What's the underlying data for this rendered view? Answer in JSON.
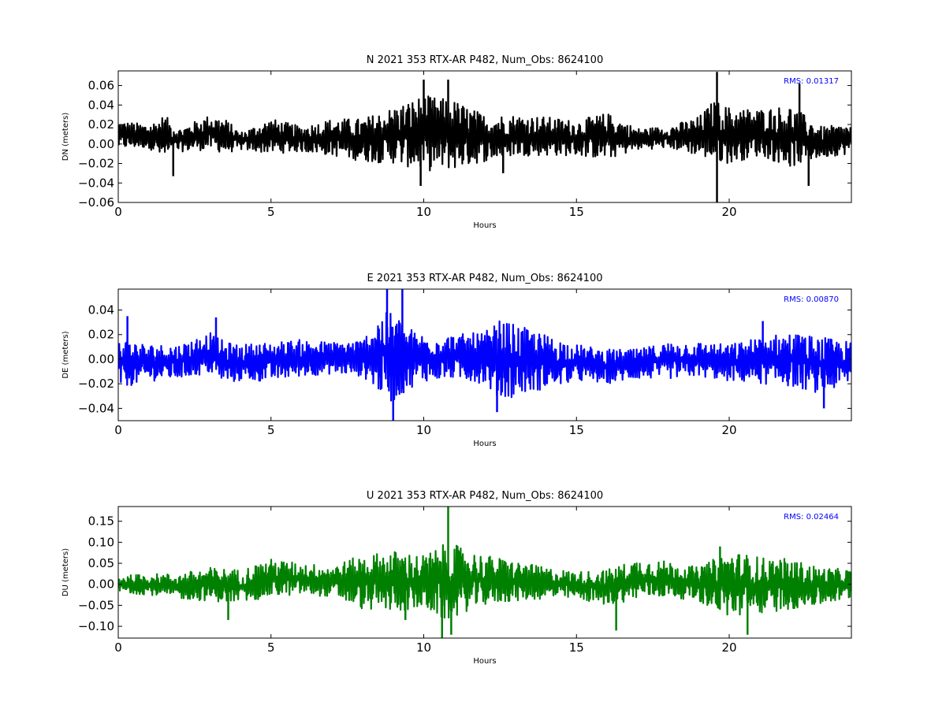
{
  "chart_data": [
    {
      "type": "line",
      "title": "N 2021 353 RTX-AR  P482, Num_Obs: 8624100",
      "xlabel": "Hours",
      "ylabel": "DN (meters)",
      "xlim": [
        0,
        24
      ],
      "ylim": [
        -0.06,
        0.075
      ],
      "xticks": [
        0,
        5,
        10,
        15,
        20
      ],
      "xtick_labels": [
        "0",
        "5",
        "10",
        "15",
        "20"
      ],
      "yticks": [
        -0.06,
        -0.04,
        -0.02,
        0.0,
        0.02,
        0.04,
        0.06
      ],
      "ytick_labels": [
        "−0.06",
        "−0.04",
        "−0.02",
        "0.00",
        "0.02",
        "0.04",
        "0.06"
      ],
      "color": "#000000",
      "annotation": "RMS:  0.01317",
      "annotation_color": "#0000ff",
      "series": [
        {
          "x": [
            0,
            1,
            1.5,
            2,
            3,
            3.5,
            4,
            5,
            6,
            7,
            8,
            9,
            10,
            11,
            12,
            13,
            14,
            15,
            16,
            17,
            18,
            19,
            19.5,
            20,
            21,
            22,
            23,
            24
          ],
          "upper": [
            0.024,
            0.02,
            0.03,
            0.016,
            0.03,
            0.026,
            0.012,
            0.026,
            0.018,
            0.026,
            0.026,
            0.038,
            0.05,
            0.045,
            0.03,
            0.03,
            0.028,
            0.024,
            0.032,
            0.016,
            0.018,
            0.028,
            0.045,
            0.038,
            0.036,
            0.04,
            0.018,
            0.02
          ],
          "lower": [
            -0.005,
            -0.004,
            -0.018,
            -0.008,
            -0.006,
            -0.01,
            -0.006,
            -0.01,
            -0.008,
            -0.012,
            -0.018,
            -0.02,
            -0.028,
            -0.026,
            -0.018,
            -0.012,
            -0.012,
            -0.012,
            -0.016,
            -0.006,
            -0.004,
            -0.012,
            -0.018,
            -0.02,
            -0.012,
            -0.024,
            -0.014,
            -0.01
          ],
          "peaks": [
            [
              10,
              0.066
            ],
            [
              10.8,
              0.066
            ],
            [
              19.6,
              0.074
            ],
            [
              19.6,
              -0.06
            ],
            [
              22.3,
              0.062
            ],
            [
              9.9,
              -0.043
            ],
            [
              22.6,
              -0.043
            ],
            [
              1.8,
              -0.033
            ],
            [
              12.6,
              -0.03
            ]
          ]
        }
      ]
    },
    {
      "type": "line",
      "title": "E 2021 353 RTX-AR  P482, Num_Obs: 8624100",
      "xlabel": "Hours",
      "ylabel": "DE (meters)",
      "xlim": [
        0,
        24
      ],
      "ylim": [
        -0.05,
        0.057
      ],
      "xticks": [
        0,
        5,
        10,
        15,
        20
      ],
      "xtick_labels": [
        "0",
        "5",
        "10",
        "15",
        "20"
      ],
      "yticks": [
        -0.04,
        -0.02,
        0.0,
        0.02,
        0.04
      ],
      "ytick_labels": [
        "−0.04",
        "−0.02",
        "0.00",
        "0.02",
        "0.04"
      ],
      "color": "#0000ff",
      "annotation": "RMS:  0.00870",
      "annotation_color": "#0000ff",
      "series": [
        {
          "x": [
            0,
            1,
            2,
            3,
            3.5,
            4,
            5,
            6,
            7,
            8,
            8.5,
            9,
            9.5,
            10,
            11,
            12,
            12.5,
            13,
            14,
            15,
            16,
            17,
            18,
            19,
            20,
            21,
            22,
            23,
            24
          ],
          "upper": [
            0.018,
            0.012,
            0.012,
            0.022,
            0.014,
            0.012,
            0.014,
            0.016,
            0.014,
            0.016,
            0.035,
            0.04,
            0.026,
            0.02,
            0.02,
            0.022,
            0.032,
            0.028,
            0.02,
            0.012,
            0.008,
            0.008,
            0.014,
            0.014,
            0.012,
            0.018,
            0.022,
            0.018,
            0.014
          ],
          "lower": [
            -0.024,
            -0.018,
            -0.016,
            -0.012,
            -0.02,
            -0.018,
            -0.018,
            -0.014,
            -0.012,
            -0.014,
            -0.026,
            -0.036,
            -0.024,
            -0.018,
            -0.016,
            -0.02,
            -0.034,
            -0.03,
            -0.024,
            -0.018,
            -0.02,
            -0.016,
            -0.016,
            -0.014,
            -0.018,
            -0.02,
            -0.022,
            -0.028,
            -0.02
          ],
          "peaks": [
            [
              8.8,
              0.057
            ],
            [
              9.3,
              0.057
            ],
            [
              9.0,
              -0.05
            ],
            [
              12.4,
              -0.043
            ],
            [
              23.1,
              -0.04
            ],
            [
              0.3,
              0.035
            ],
            [
              3.2,
              0.034
            ],
            [
              21.1,
              0.031
            ]
          ]
        }
      ]
    },
    {
      "type": "line",
      "title": "U 2021 353 RTX-AR  P482, Num_Obs: 8624100",
      "xlabel": "Hours",
      "ylabel": "DU (meters)",
      "xlim": [
        0,
        24
      ],
      "ylim": [
        -0.128,
        0.185
      ],
      "xticks": [
        0,
        5,
        10,
        15,
        20
      ],
      "xtick_labels": [
        "0",
        "5",
        "10",
        "15",
        "20"
      ],
      "yticks": [
        -0.1,
        -0.05,
        0.0,
        0.05,
        0.1,
        0.15
      ],
      "ytick_labels": [
        "−0.10",
        "−0.05",
        "0.00",
        "0.05",
        "0.10",
        "0.15"
      ],
      "color": "#008000",
      "annotation": "RMS:  0.02464",
      "annotation_color": "#0000ff",
      "series": [
        {
          "x": [
            0,
            1,
            2,
            3,
            4,
            5,
            6,
            7,
            8,
            9,
            10,
            10.8,
            11.5,
            12,
            13,
            14,
            15,
            16,
            17,
            18,
            19,
            20,
            21,
            22,
            23,
            24
          ],
          "upper": [
            0.02,
            0.025,
            0.025,
            0.04,
            0.035,
            0.06,
            0.05,
            0.045,
            0.07,
            0.08,
            0.07,
            0.1,
            0.08,
            0.07,
            0.055,
            0.04,
            0.03,
            0.035,
            0.06,
            0.055,
            0.04,
            0.08,
            0.065,
            0.06,
            0.04,
            0.035
          ],
          "lower": [
            -0.02,
            -0.025,
            -0.035,
            -0.04,
            -0.045,
            -0.03,
            -0.025,
            -0.03,
            -0.06,
            -0.065,
            -0.06,
            -0.09,
            -0.06,
            -0.05,
            -0.04,
            -0.035,
            -0.035,
            -0.05,
            -0.035,
            -0.03,
            -0.04,
            -0.08,
            -0.07,
            -0.06,
            -0.05,
            -0.035
          ],
          "peaks": [
            [
              10.8,
              0.185
            ],
            [
              10.6,
              -0.128
            ],
            [
              10.9,
              -0.12
            ],
            [
              20.6,
              -0.12
            ],
            [
              16.3,
              -0.11
            ],
            [
              3.6,
              -0.085
            ],
            [
              19.7,
              0.09
            ],
            [
              9.4,
              -0.085
            ]
          ]
        }
      ]
    }
  ]
}
